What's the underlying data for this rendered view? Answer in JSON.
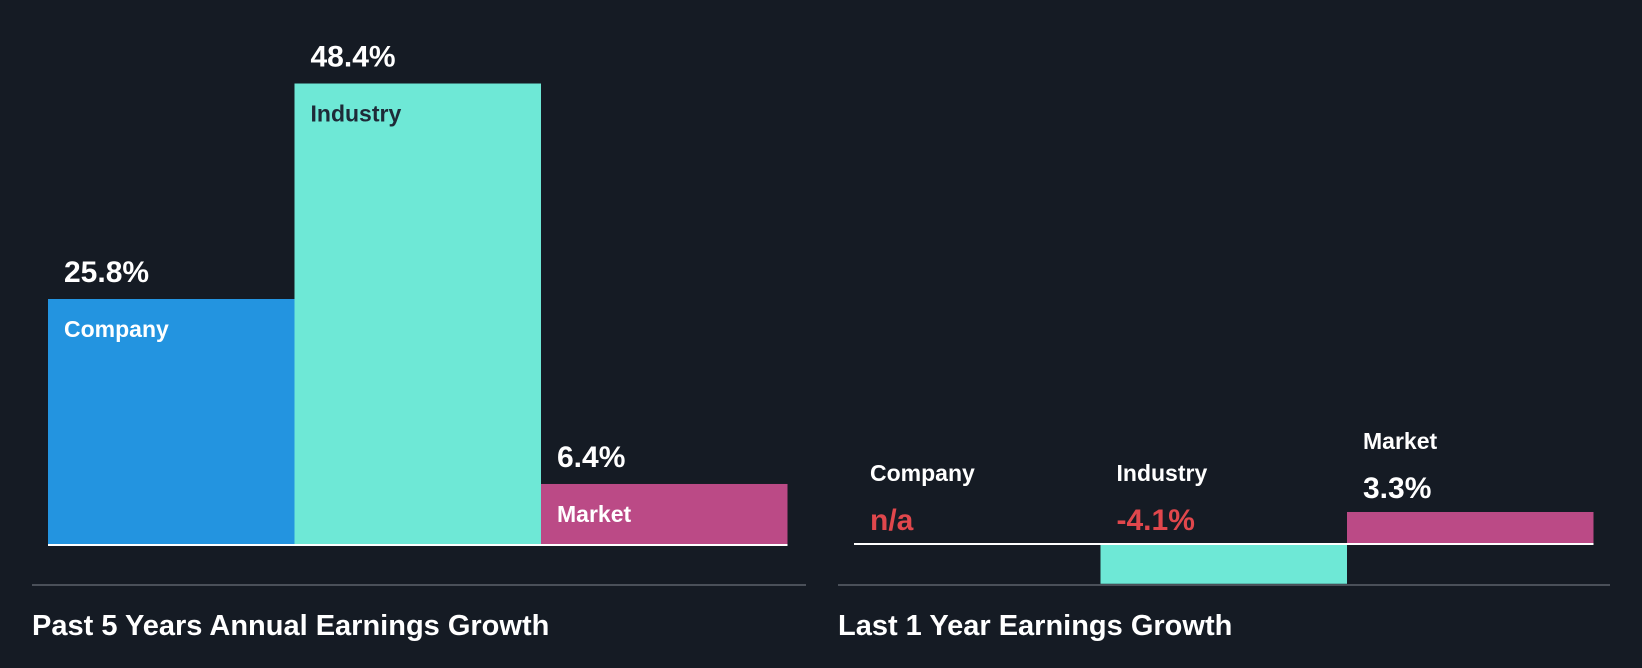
{
  "colors": {
    "background": "#151b24",
    "company": "#2394e0",
    "industry": "#6ee8d6",
    "market": "#bb4a86",
    "text_light": "#ffffff",
    "text_dark": "#1e2a38",
    "negative": "#e0474c",
    "baseline": "#ffffff",
    "divider": "#4a5059"
  },
  "chart_data": [
    {
      "type": "bar",
      "title": "Past 5 Years Annual Earnings Growth",
      "categories": [
        "Company",
        "Industry",
        "Market"
      ],
      "values": [
        25.8,
        48.4,
        6.4
      ],
      "display_values": [
        "25.8%",
        "48.4%",
        "6.4%"
      ],
      "unit": "%",
      "label_position": "inside-top"
    },
    {
      "type": "bar",
      "title": "Last 1 Year Earnings Growth",
      "categories": [
        "Company",
        "Industry",
        "Market"
      ],
      "values": [
        null,
        -4.1,
        3.3
      ],
      "display_values": [
        "n/a",
        "-4.1%",
        "3.3%"
      ],
      "unit": "%",
      "label_position": "above"
    }
  ]
}
